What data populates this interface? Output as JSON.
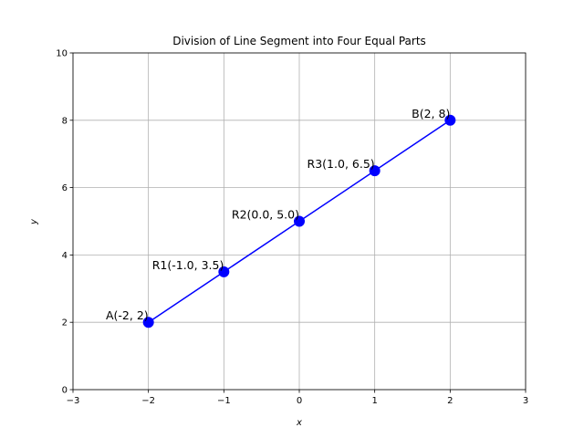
{
  "chart_data": {
    "type": "line",
    "title": "Division of Line Segment into Four Equal Parts",
    "xlabel": "x",
    "ylabel": "y",
    "xlim": [
      -3,
      3
    ],
    "ylim": [
      0,
      10
    ],
    "xticks": [
      -3,
      -2,
      -1,
      0,
      1,
      2,
      3
    ],
    "yticks": [
      0,
      2,
      4,
      6,
      8,
      10
    ],
    "xtick_labels": [
      "−3",
      "−2",
      "−1",
      "0",
      "1",
      "2",
      "3"
    ],
    "ytick_labels": [
      "0",
      "2",
      "4",
      "6",
      "8",
      "10"
    ],
    "grid": true,
    "line_color": "#0000ff",
    "marker_color": "#0000ff",
    "series": [
      {
        "x": [
          -2,
          -1,
          0,
          1,
          2
        ],
        "y": [
          2,
          3.5,
          5,
          6.5,
          8
        ]
      }
    ],
    "annotations": [
      {
        "text": "A(-2, 2)",
        "x": -2,
        "y": 2
      },
      {
        "text": "R1(-1.0, 3.5)",
        "x": -1,
        "y": 3.5
      },
      {
        "text": "R2(0.0, 5.0)",
        "x": 0,
        "y": 5
      },
      {
        "text": "R3(1.0, 6.5)",
        "x": 1,
        "y": 6.5
      },
      {
        "text": "B(2, 8)",
        "x": 2,
        "y": 8
      }
    ]
  }
}
